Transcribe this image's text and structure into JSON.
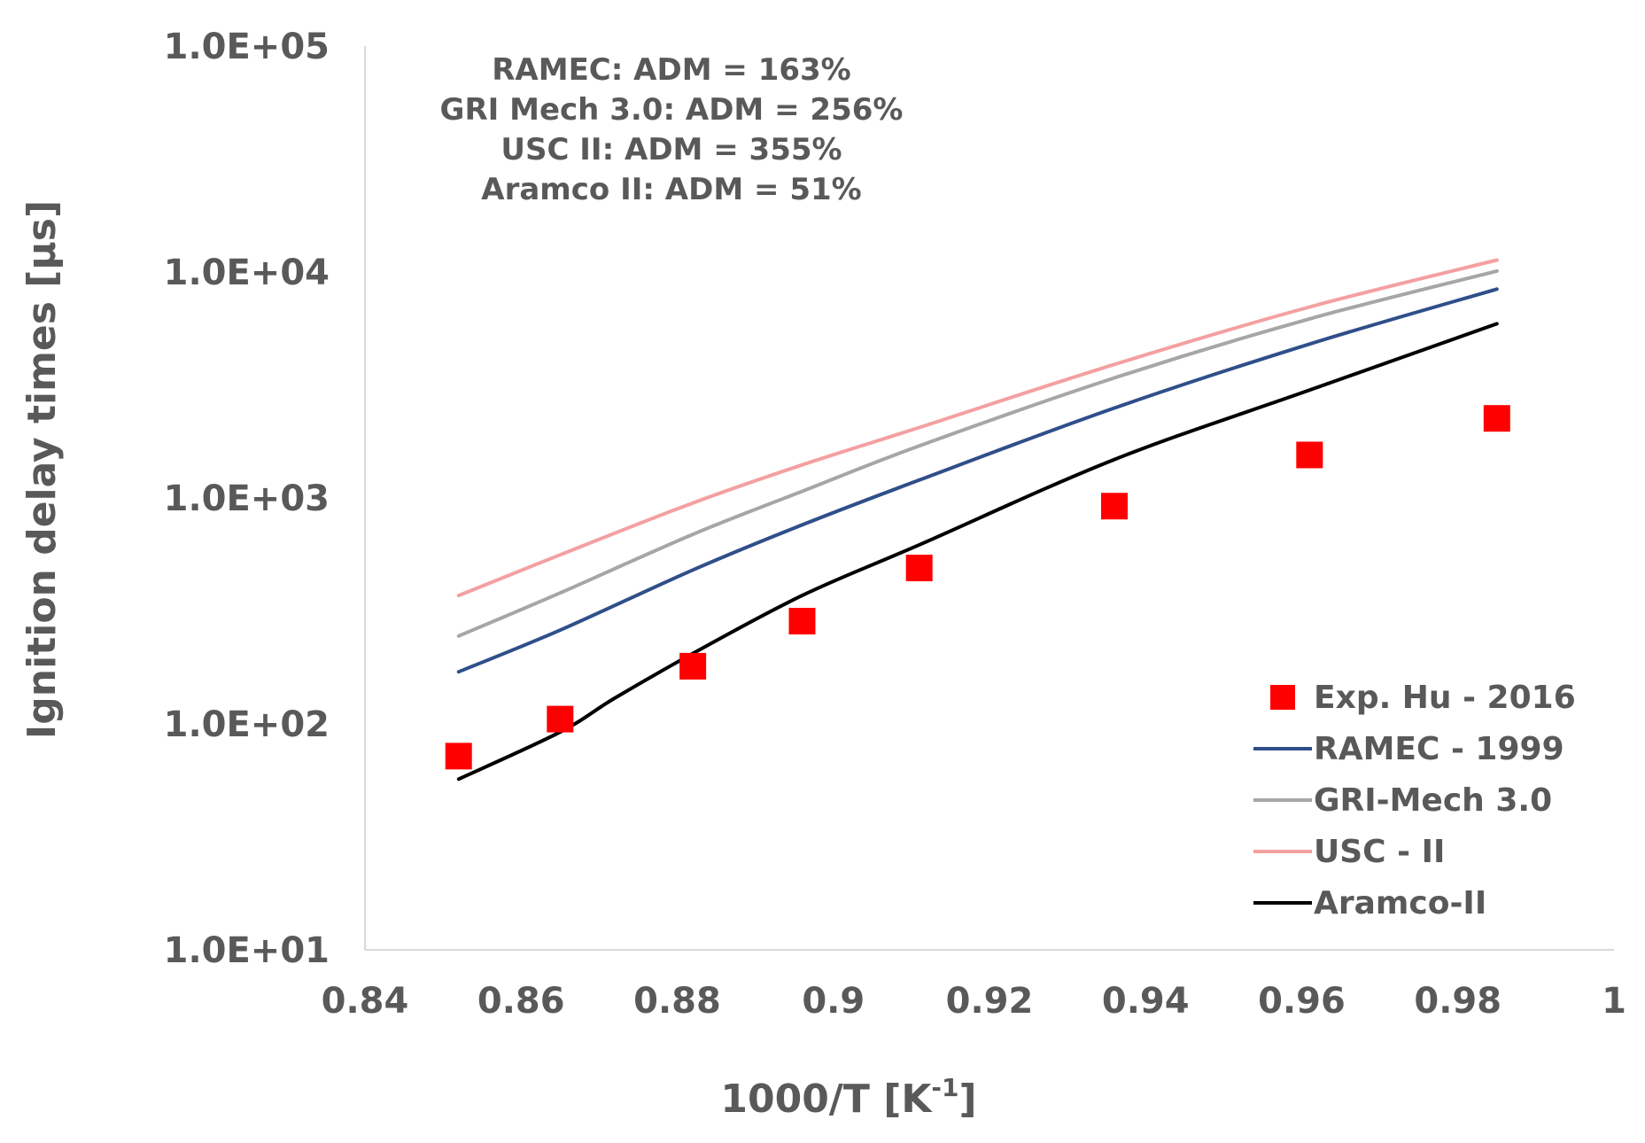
{
  "chart_data": {
    "type": "line",
    "title": "",
    "xlabel": "1000/T [K",
    "xlabel_sup": "-1",
    "xlabel_tail": "]",
    "ylabel": "Ignition delay times [μs]",
    "y_scale": "log",
    "xlim": [
      0.84,
      1.0
    ],
    "ylim": [
      10,
      100000
    ],
    "x_ticks": [
      0.84,
      0.86,
      0.88,
      0.9,
      0.92,
      0.94,
      0.96,
      0.98,
      1.0
    ],
    "x_tick_labels": [
      "0.84",
      "0.86",
      "0.88",
      "0.9",
      "0.92",
      "0.94",
      "0.96",
      "0.98",
      "1"
    ],
    "y_ticks": [
      10,
      100,
      1000,
      10000,
      100000
    ],
    "y_tick_labels": [
      "1.0E+01",
      "1.0E+02",
      "1.0E+03",
      "1.0E+04",
      "1.0E+05"
    ],
    "grid": false,
    "annotations": [
      "RAMEC: ADM = 163%",
      "GRI Mech 3.0: ADM = 256%",
      "USC II: ADM = 355%",
      "Aramco II: ADM = 51%"
    ],
    "legend_position": "bottom-right",
    "series": [
      {
        "name": "Exp. Hu - 2016",
        "kind": "scatter",
        "marker": "square",
        "color": "#ff0000",
        "x": [
          0.852,
          0.865,
          0.882,
          0.896,
          0.911,
          0.936,
          0.961,
          0.985
        ],
        "y": [
          72,
          105,
          180,
          285,
          490,
          920,
          1550,
          2250
        ]
      },
      {
        "name": "RAMEC - 1999",
        "kind": "line",
        "color": "#2f4f8a",
        "x": [
          0.852,
          0.865,
          0.882,
          0.896,
          0.911,
          0.936,
          0.961,
          0.985
        ],
        "y": [
          170,
          260,
          480,
          760,
          1200,
          2500,
          4800,
          8400
        ]
      },
      {
        "name": "GRI-Mech 3.0",
        "kind": "line",
        "color": "#a6a6a6",
        "x": [
          0.852,
          0.865,
          0.882,
          0.896,
          0.911,
          0.936,
          0.961,
          0.985
        ],
        "y": [
          245,
          380,
          690,
          1070,
          1700,
          3400,
          6200,
          10100
        ]
      },
      {
        "name": "USC - II",
        "kind": "line",
        "color": "#f4a0a0",
        "x": [
          0.852,
          0.865,
          0.882,
          0.896,
          0.911,
          0.936,
          0.961,
          0.985
        ],
        "y": [
          370,
          560,
          950,
          1400,
          2050,
          3900,
          7000,
          11300
        ]
      },
      {
        "name": "Aramco-II",
        "kind": "line",
        "color": "#000000",
        "x": [
          0.852,
          0.865,
          0.872,
          0.882,
          0.896,
          0.911,
          0.936,
          0.961,
          0.985
        ],
        "y": [
          57,
          92,
          130,
          205,
          370,
          620,
          1480,
          3000,
          5900
        ]
      }
    ]
  }
}
